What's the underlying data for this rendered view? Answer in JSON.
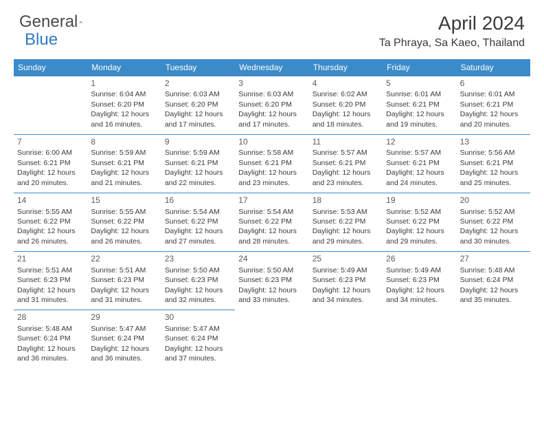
{
  "logo": {
    "part1": "General",
    "part2": "Blue"
  },
  "title": "April 2024",
  "location": "Ta Phraya, Sa Kaeo, Thailand",
  "weekdays": [
    "Sunday",
    "Monday",
    "Tuesday",
    "Wednesday",
    "Thursday",
    "Friday",
    "Saturday"
  ],
  "colors": {
    "header_bg": "#3c8bc9",
    "header_text": "#ffffff",
    "border": "#3c8bc9",
    "text": "#3a3a3a",
    "logo_gray": "#4a4a4a",
    "logo_blue": "#3278c0"
  },
  "start_offset": 1,
  "days": [
    {
      "n": 1,
      "sunrise": "6:04 AM",
      "sunset": "6:20 PM",
      "dl_h": 12,
      "dl_m": 16
    },
    {
      "n": 2,
      "sunrise": "6:03 AM",
      "sunset": "6:20 PM",
      "dl_h": 12,
      "dl_m": 17
    },
    {
      "n": 3,
      "sunrise": "6:03 AM",
      "sunset": "6:20 PM",
      "dl_h": 12,
      "dl_m": 17
    },
    {
      "n": 4,
      "sunrise": "6:02 AM",
      "sunset": "6:20 PM",
      "dl_h": 12,
      "dl_m": 18
    },
    {
      "n": 5,
      "sunrise": "6:01 AM",
      "sunset": "6:21 PM",
      "dl_h": 12,
      "dl_m": 19
    },
    {
      "n": 6,
      "sunrise": "6:01 AM",
      "sunset": "6:21 PM",
      "dl_h": 12,
      "dl_m": 20
    },
    {
      "n": 7,
      "sunrise": "6:00 AM",
      "sunset": "6:21 PM",
      "dl_h": 12,
      "dl_m": 20
    },
    {
      "n": 8,
      "sunrise": "5:59 AM",
      "sunset": "6:21 PM",
      "dl_h": 12,
      "dl_m": 21
    },
    {
      "n": 9,
      "sunrise": "5:59 AM",
      "sunset": "6:21 PM",
      "dl_h": 12,
      "dl_m": 22
    },
    {
      "n": 10,
      "sunrise": "5:58 AM",
      "sunset": "6:21 PM",
      "dl_h": 12,
      "dl_m": 23
    },
    {
      "n": 11,
      "sunrise": "5:57 AM",
      "sunset": "6:21 PM",
      "dl_h": 12,
      "dl_m": 23
    },
    {
      "n": 12,
      "sunrise": "5:57 AM",
      "sunset": "6:21 PM",
      "dl_h": 12,
      "dl_m": 24
    },
    {
      "n": 13,
      "sunrise": "5:56 AM",
      "sunset": "6:21 PM",
      "dl_h": 12,
      "dl_m": 25
    },
    {
      "n": 14,
      "sunrise": "5:55 AM",
      "sunset": "6:22 PM",
      "dl_h": 12,
      "dl_m": 26
    },
    {
      "n": 15,
      "sunrise": "5:55 AM",
      "sunset": "6:22 PM",
      "dl_h": 12,
      "dl_m": 26
    },
    {
      "n": 16,
      "sunrise": "5:54 AM",
      "sunset": "6:22 PM",
      "dl_h": 12,
      "dl_m": 27
    },
    {
      "n": 17,
      "sunrise": "5:54 AM",
      "sunset": "6:22 PM",
      "dl_h": 12,
      "dl_m": 28
    },
    {
      "n": 18,
      "sunrise": "5:53 AM",
      "sunset": "6:22 PM",
      "dl_h": 12,
      "dl_m": 29
    },
    {
      "n": 19,
      "sunrise": "5:52 AM",
      "sunset": "6:22 PM",
      "dl_h": 12,
      "dl_m": 29
    },
    {
      "n": 20,
      "sunrise": "5:52 AM",
      "sunset": "6:22 PM",
      "dl_h": 12,
      "dl_m": 30
    },
    {
      "n": 21,
      "sunrise": "5:51 AM",
      "sunset": "6:23 PM",
      "dl_h": 12,
      "dl_m": 31
    },
    {
      "n": 22,
      "sunrise": "5:51 AM",
      "sunset": "6:23 PM",
      "dl_h": 12,
      "dl_m": 31
    },
    {
      "n": 23,
      "sunrise": "5:50 AM",
      "sunset": "6:23 PM",
      "dl_h": 12,
      "dl_m": 32
    },
    {
      "n": 24,
      "sunrise": "5:50 AM",
      "sunset": "6:23 PM",
      "dl_h": 12,
      "dl_m": 33
    },
    {
      "n": 25,
      "sunrise": "5:49 AM",
      "sunset": "6:23 PM",
      "dl_h": 12,
      "dl_m": 34
    },
    {
      "n": 26,
      "sunrise": "5:49 AM",
      "sunset": "6:23 PM",
      "dl_h": 12,
      "dl_m": 34
    },
    {
      "n": 27,
      "sunrise": "5:48 AM",
      "sunset": "6:24 PM",
      "dl_h": 12,
      "dl_m": 35
    },
    {
      "n": 28,
      "sunrise": "5:48 AM",
      "sunset": "6:24 PM",
      "dl_h": 12,
      "dl_m": 36
    },
    {
      "n": 29,
      "sunrise": "5:47 AM",
      "sunset": "6:24 PM",
      "dl_h": 12,
      "dl_m": 36
    },
    {
      "n": 30,
      "sunrise": "5:47 AM",
      "sunset": "6:24 PM",
      "dl_h": 12,
      "dl_m": 37
    }
  ]
}
